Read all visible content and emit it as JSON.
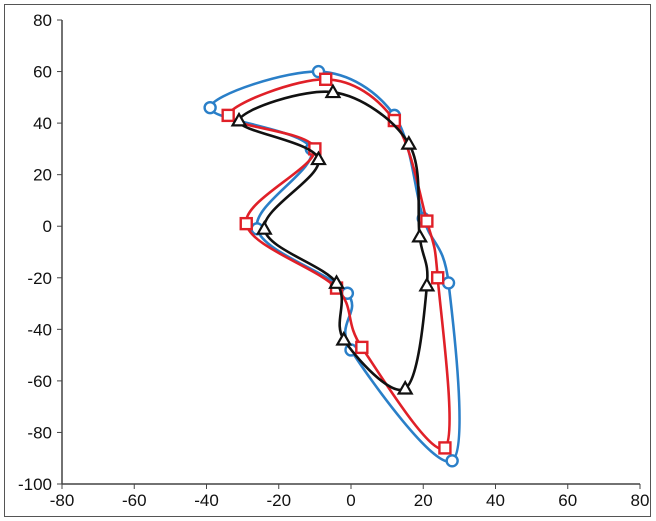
{
  "chart_data": {
    "type": "line",
    "title": "",
    "xlabel": "",
    "ylabel": "",
    "xlim": [
      -80,
      80
    ],
    "ylim": [
      -100,
      80
    ],
    "x_ticks": [
      -80,
      -60,
      -40,
      -20,
      0,
      20,
      40,
      60,
      80
    ],
    "y_ticks": [
      -100,
      -80,
      -60,
      -40,
      -20,
      0,
      20,
      40,
      60,
      80
    ],
    "grid": false,
    "legend": "none",
    "series": [
      {
        "color": "#2a7fc8",
        "marker": "circle",
        "points": [
          [
            -39,
            46
          ],
          [
            -9,
            60
          ],
          [
            12,
            43
          ],
          [
            20,
            3
          ],
          [
            27,
            -22
          ],
          [
            28,
            -91
          ],
          [
            0,
            -48
          ],
          [
            -1,
            -26
          ],
          [
            -26,
            -1
          ],
          [
            -11,
            30
          ]
        ]
      },
      {
        "color": "#e02028",
        "marker": "square",
        "points": [
          [
            -34,
            43
          ],
          [
            -7,
            57
          ],
          [
            12,
            41
          ],
          [
            21,
            2
          ],
          [
            24,
            -20
          ],
          [
            26,
            -86
          ],
          [
            3,
            -47
          ],
          [
            -4,
            -24
          ],
          [
            -29,
            1
          ],
          [
            -10,
            30
          ]
        ]
      },
      {
        "color": "#111111",
        "marker": "triangle",
        "points": [
          [
            -31,
            41
          ],
          [
            -5,
            52
          ],
          [
            16,
            32
          ],
          [
            19,
            -4
          ],
          [
            21,
            -23
          ],
          [
            15,
            -63
          ],
          [
            -2,
            -44
          ],
          [
            -4,
            -22
          ],
          [
            -24,
            -1
          ],
          [
            -9,
            26
          ]
        ]
      }
    ]
  }
}
